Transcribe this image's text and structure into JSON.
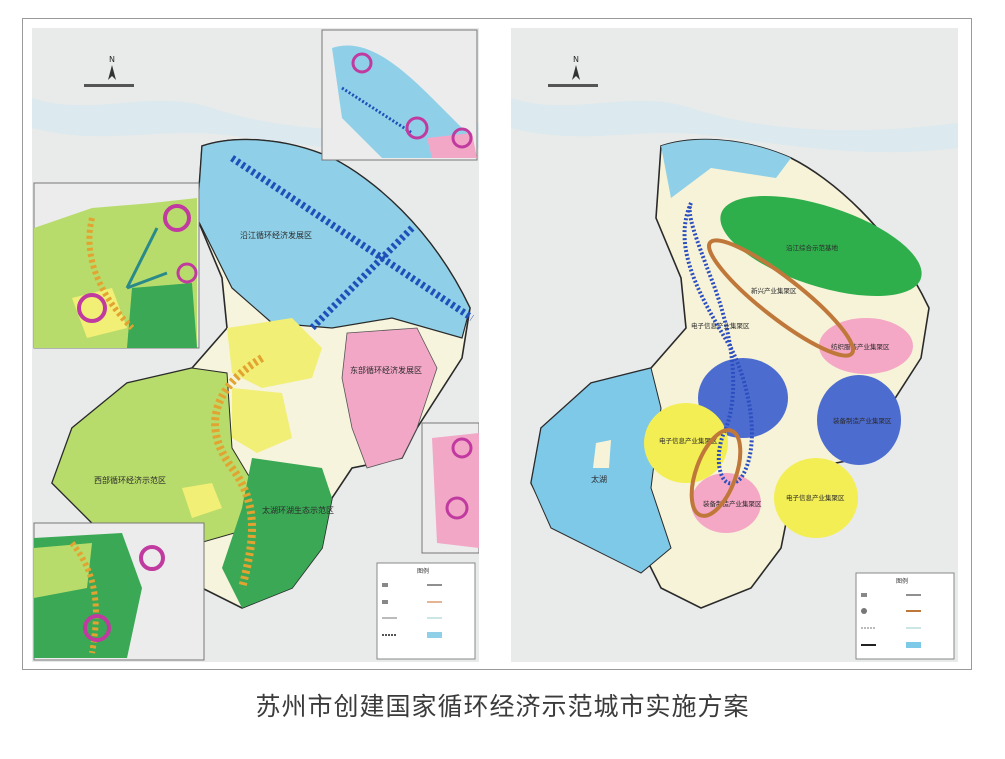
{
  "caption": "苏州市创建国家循环经济示范城市实施方案",
  "left_map": {
    "north_label": "N",
    "zones": [
      "沿江循环经济发展区",
      "东部循环经济发展区",
      "太湖环湖生态示范区",
      "西部循环经济示范区"
    ],
    "legend_title": "图例"
  },
  "right_map": {
    "north_label": "N",
    "clusters": [
      "沿江综合示范基地",
      "电子信息产业集聚区",
      "新兴产业集聚区",
      "纺织服装产业集聚区",
      "装备制造产业集聚区",
      "电子信息产业集聚区",
      "装备制造产业集聚区",
      "电子信息产业集聚区"
    ],
    "lake_label": "太湖",
    "legend_title": "图例"
  },
  "colors": {
    "water": "#b8dff0",
    "lake": "#7ec8e8",
    "green": "#9bd46a",
    "dark_green": "#2f9d44",
    "yellow": "#f2f079",
    "pink": "#f3a9c6",
    "blue_zone": "#4c6fd0",
    "arrow_orange": "#e0a030",
    "arrow_blue": "#1f4fb8",
    "arrow_magenta": "#c13aa0"
  }
}
